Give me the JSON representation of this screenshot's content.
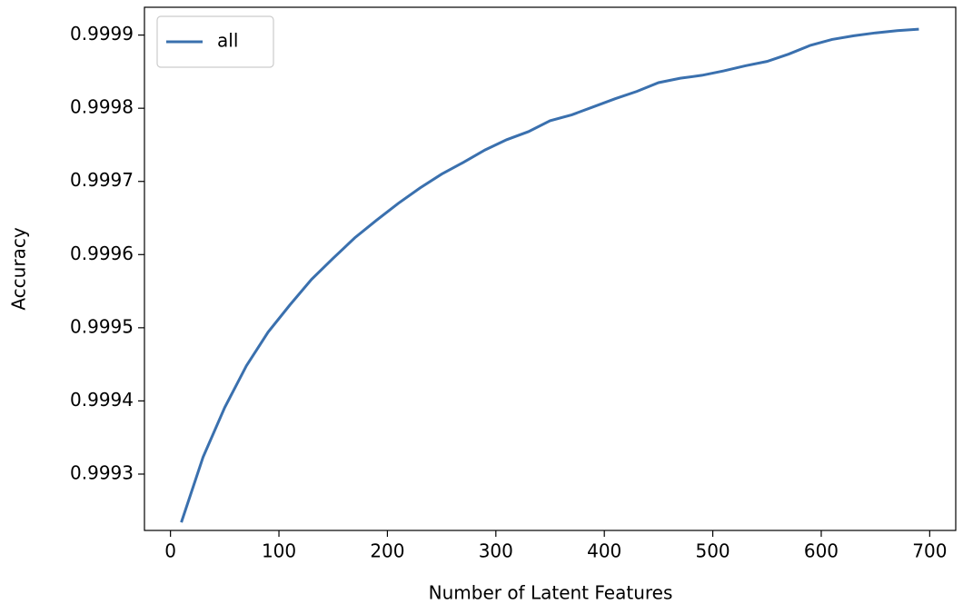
{
  "chart_data": {
    "type": "line",
    "xlabel": "Number of Latent Features",
    "ylabel": "Accuracy",
    "x": [
      10,
      30,
      50,
      70,
      90,
      110,
      130,
      150,
      170,
      190,
      210,
      230,
      250,
      270,
      290,
      310,
      330,
      350,
      370,
      390,
      410,
      430,
      450,
      470,
      490,
      510,
      530,
      550,
      570,
      590,
      610,
      630,
      650,
      670,
      690
    ],
    "series": [
      {
        "name": "all",
        "color": "#3a70ae",
        "values": [
          0.999234,
          0.999323,
          0.999391,
          0.999448,
          0.999494,
          0.999531,
          0.999566,
          0.999595,
          0.999623,
          0.999647,
          0.99967,
          0.999691,
          0.99971,
          0.999726,
          0.999743,
          0.999757,
          0.999768,
          0.999783,
          0.999791,
          0.999802,
          0.999813,
          0.999823,
          0.999835,
          0.999841,
          0.999845,
          0.999851,
          0.999858,
          0.999864,
          0.999874,
          0.999886,
          0.999894,
          0.999899,
          0.999903,
          0.999906,
          0.999908
        ]
      }
    ],
    "xlim": [
      -24,
      724
    ],
    "ylim": [
      0.999223,
      0.999938
    ],
    "xticks": [
      0,
      100,
      200,
      300,
      400,
      500,
      600,
      700
    ],
    "yticks": [
      0.9993,
      0.9994,
      0.9995,
      0.9996,
      0.9997,
      0.9998,
      0.9999
    ],
    "legend": "upper left"
  }
}
